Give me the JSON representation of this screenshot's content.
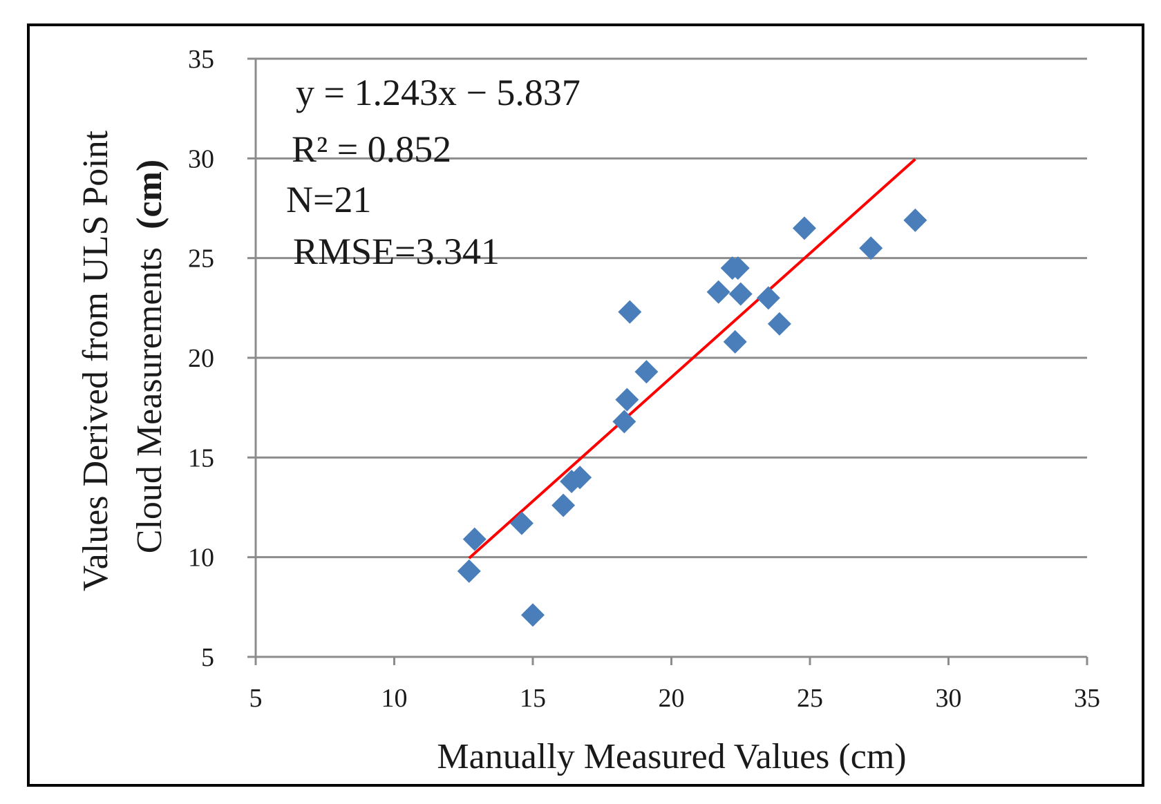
{
  "chart_data": {
    "type": "scatter",
    "title": "",
    "xlabel": "Manually  Measured  Values (cm)",
    "ylabel": {
      "line1": "Values Derived from ULS Point",
      "line2": "Cloud Measurements  ",
      "unit": "(cm)"
    },
    "xlim": [
      5,
      35
    ],
    "ylim": [
      5,
      35
    ],
    "x_ticks": [
      "5",
      "10",
      "15",
      "20",
      "25",
      "30",
      "35"
    ],
    "y_ticks": [
      "5",
      "10",
      "15",
      "20",
      "25",
      "30",
      "35"
    ],
    "grid": {
      "horizontal": true,
      "vertical": false
    },
    "legend": "none",
    "points": [
      {
        "x": 12.7,
        "y": 9.3
      },
      {
        "x": 12.9,
        "y": 10.9
      },
      {
        "x": 14.6,
        "y": 11.7
      },
      {
        "x": 15.0,
        "y": 7.1
      },
      {
        "x": 16.1,
        "y": 12.6
      },
      {
        "x": 16.4,
        "y": 13.8
      },
      {
        "x": 16.7,
        "y": 14.0
      },
      {
        "x": 18.3,
        "y": 16.8
      },
      {
        "x": 18.4,
        "y": 17.9
      },
      {
        "x": 18.5,
        "y": 22.3
      },
      {
        "x": 19.1,
        "y": 19.3
      },
      {
        "x": 21.7,
        "y": 23.3
      },
      {
        "x": 22.2,
        "y": 24.5
      },
      {
        "x": 22.4,
        "y": 24.5
      },
      {
        "x": 22.3,
        "y": 20.8
      },
      {
        "x": 22.5,
        "y": 23.2
      },
      {
        "x": 23.5,
        "y": 23.0
      },
      {
        "x": 23.9,
        "y": 21.7
      },
      {
        "x": 24.8,
        "y": 26.5
      },
      {
        "x": 27.2,
        "y": 25.5
      },
      {
        "x": 28.8,
        "y": 26.9
      }
    ],
    "trendline": {
      "slope": 1.243,
      "intercept": -5.837,
      "x_range": [
        12.7,
        28.8
      ],
      "color": "#ff0000"
    },
    "annotations": [
      "y = 1.243x − 5.837",
      "R² = 0.852",
      "N=21",
      "RMSE=3.341"
    ],
    "colors": {
      "marker": "#4a7ebb",
      "grid": "#8c8c8c",
      "trendline": "#ff0000",
      "frame": "#000000"
    }
  }
}
